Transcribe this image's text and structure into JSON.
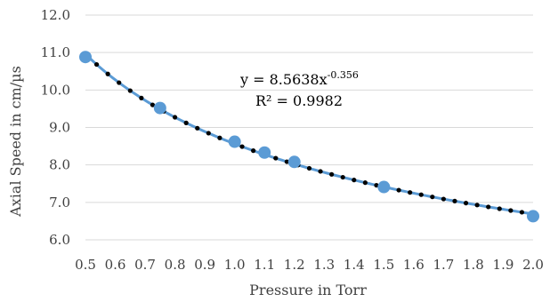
{
  "chart_data": {
    "type": "scatter",
    "xlabel": "Pressure in Torr",
    "ylabel": "Axial Speed in cm/µs",
    "xlim": [
      0.5,
      2.0
    ],
    "ylim": [
      6.0,
      12.0
    ],
    "x_ticks": [
      "0.5",
      "0.6",
      "0.7",
      "0.8",
      "0.9",
      "1.0",
      "1.1",
      "1.2",
      "1.3",
      "1.4",
      "1.5",
      "1.6",
      "1.7",
      "1.8",
      "1.9",
      "2.0"
    ],
    "y_ticks": [
      "6.0",
      "7.0",
      "8.0",
      "9.0",
      "10.0",
      "11.0",
      "12.0"
    ],
    "grid": "horizontal",
    "series": [
      {
        "marker_color": "#5b9bd5",
        "points": [
          {
            "x": 0.5,
            "y": 10.88
          },
          {
            "x": 0.75,
            "y": 9.52
          },
          {
            "x": 1.0,
            "y": 8.62
          },
          {
            "x": 1.1,
            "y": 8.33
          },
          {
            "x": 1.2,
            "y": 8.08
          },
          {
            "x": 1.5,
            "y": 7.41
          },
          {
            "x": 2.0,
            "y": 6.63
          }
        ]
      }
    ],
    "trendline": {
      "type": "power",
      "coefficient": 8.5638,
      "exponent": -0.356,
      "line_color": "#5b9bd5",
      "dot_color": "#000000",
      "equation_prefix": "y = 8.5638x",
      "equation_exponent": "-0.356",
      "r_squared": "R² = 0.9982"
    }
  }
}
